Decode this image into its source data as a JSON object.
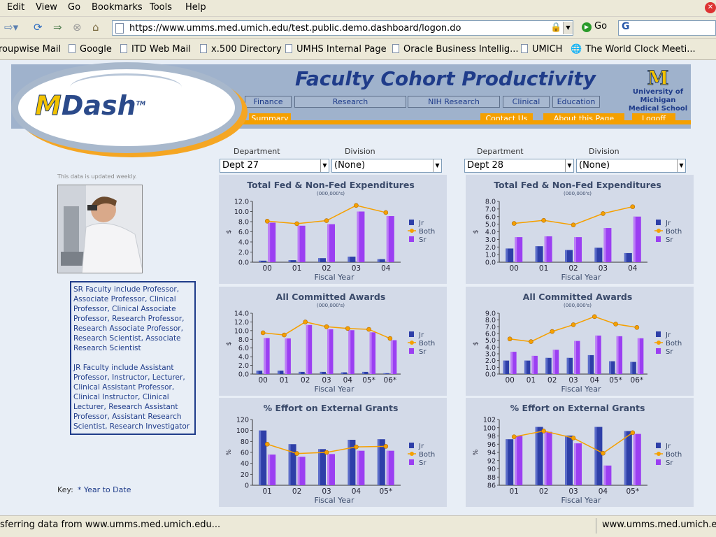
{
  "menu": [
    "Edit",
    "View",
    "Go",
    "Bookmarks",
    "Tools",
    "Help"
  ],
  "address": {
    "url": "https://www.umms.med.umich.edu/test.public.demo.dashboard/logon.do",
    "go_label": "Go",
    "search_glyph": "G"
  },
  "bookmarks": [
    "roupwise Mail",
    "Google",
    "ITD Web Mail",
    "x.500 Directory",
    "UMHS Internal Page",
    "Oracle Business Intellig...",
    "UMICH",
    "The World Clock Meeti..."
  ],
  "header": {
    "logo_m": "M",
    "logo_text": "Dash",
    "logo_tm": "TM",
    "title": "Faculty Cohort Productivity",
    "um_m": "M",
    "um_line1": "University of Michigan",
    "um_line2": "Medical School",
    "tabs": [
      "Finance",
      "Research",
      "NIH Research",
      "Clinical",
      "Education"
    ],
    "orange_tabs": [
      "Summary",
      "Contact Us",
      "About this Page",
      "Logoff"
    ]
  },
  "selectors": {
    "left": {
      "dept_label": "Department",
      "div_label": "Division",
      "dept_value": "Dept 27",
      "div_value": "(None)"
    },
    "right": {
      "dept_label": "Department",
      "div_label": "Division",
      "dept_value": "Dept 28",
      "div_value": "(None)"
    }
  },
  "sidebar": {
    "updated": "This data is updated weekly.",
    "sr_text": "SR Faculty include Professor, Associate Professor, Clinical Professor, Clinical Associate Professor, Research Professor, Research Associate Professor, Research Scientist, Associate Research Scientist",
    "jr_text": "JR Faculty include Assistant Professor, Instructor, Lecturer, Clinical Assistant Professor, Clinical Instructor, Clinical Lecturer, Research Assistant Professor, Assistant Research Scientist, Research Investigator",
    "key_label": "Key:",
    "key_text": "* Year to Date"
  },
  "colors": {
    "jr": "#2e3fa8",
    "both": "#f5a000",
    "sr": "#9b3ff2"
  },
  "chart_data": [
    {
      "id": "l1",
      "type": "bar",
      "title": "Total Fed & Non-Fed Expenditures",
      "subtitle": "(000,000's)",
      "xlabel": "Fiscal Year",
      "ylabel": "$",
      "categories": [
        "00",
        "01",
        "02",
        "03",
        "04"
      ],
      "ylim": [
        0,
        12
      ],
      "yticks": [
        "0.0",
        "2.0",
        "4.0",
        "6.0",
        "8.0",
        "10.0",
        "12.0"
      ],
      "series": [
        {
          "name": "Jr",
          "values": [
            0.3,
            0.4,
            0.8,
            1.1,
            0.6
          ]
        },
        {
          "name": "Both",
          "type": "line",
          "values": [
            8.1,
            7.6,
            8.2,
            11.2,
            9.8
          ]
        },
        {
          "name": "Sr",
          "values": [
            7.8,
            7.2,
            7.5,
            10.0,
            9.1
          ]
        }
      ]
    },
    {
      "id": "r1",
      "type": "bar",
      "title": "Total Fed & Non-Fed Expenditures",
      "subtitle": "(000,000's)",
      "xlabel": "Fiscal Year",
      "ylabel": "$",
      "categories": [
        "00",
        "01",
        "02",
        "03",
        "04"
      ],
      "ylim": [
        0,
        8
      ],
      "yticks": [
        "0.0",
        "1.0",
        "2.0",
        "3.0",
        "4.0",
        "5.0",
        "6.0",
        "7.0",
        "8.0"
      ],
      "series": [
        {
          "name": "Jr",
          "values": [
            1.8,
            2.1,
            1.6,
            1.9,
            1.2
          ]
        },
        {
          "name": "Both",
          "type": "line",
          "values": [
            5.1,
            5.5,
            4.9,
            6.4,
            7.3
          ]
        },
        {
          "name": "Sr",
          "values": [
            3.3,
            3.4,
            3.3,
            4.5,
            6.0
          ]
        }
      ]
    },
    {
      "id": "l2",
      "type": "bar",
      "title": "All Committed Awards",
      "subtitle": "(000,000's)",
      "xlabel": "Fiscal Year",
      "ylabel": "$",
      "categories": [
        "00",
        "01",
        "02",
        "03",
        "04",
        "05*",
        "06*"
      ],
      "ylim": [
        0,
        14
      ],
      "yticks": [
        "0.0",
        "2.0",
        "4.0",
        "6.0",
        "8.0",
        "10.0",
        "12.0",
        "14.0"
      ],
      "series": [
        {
          "name": "Jr",
          "values": [
            0.8,
            0.8,
            0.5,
            0.5,
            0.4,
            0.5,
            0.2
          ]
        },
        {
          "name": "Both",
          "type": "line",
          "values": [
            9.5,
            9.0,
            12.0,
            10.9,
            10.5,
            10.3,
            8.2
          ]
        },
        {
          "name": "Sr",
          "values": [
            8.3,
            8.2,
            11.3,
            10.3,
            10.1,
            9.6,
            7.8
          ]
        }
      ]
    },
    {
      "id": "r2",
      "type": "bar",
      "title": "All Committed Awards",
      "subtitle": "(000,000's)",
      "xlabel": "Fiscal Year",
      "ylabel": "$",
      "categories": [
        "00",
        "01",
        "02",
        "03",
        "04",
        "05*",
        "06*"
      ],
      "ylim": [
        0,
        9
      ],
      "yticks": [
        "0.0",
        "1.0",
        "2.0",
        "3.0",
        "4.0",
        "5.0",
        "6.0",
        "7.0",
        "8.0",
        "9.0"
      ],
      "series": [
        {
          "name": "Jr",
          "values": [
            2.0,
            2.0,
            2.4,
            2.4,
            2.8,
            1.9,
            1.8
          ]
        },
        {
          "name": "Both",
          "type": "line",
          "values": [
            5.2,
            4.8,
            6.3,
            7.3,
            8.5,
            7.4,
            6.9
          ]
        },
        {
          "name": "Sr",
          "values": [
            3.3,
            2.7,
            3.6,
            4.9,
            5.7,
            5.6,
            5.3
          ]
        }
      ]
    },
    {
      "id": "l3",
      "type": "bar",
      "title": "% Effort on External Grants",
      "subtitle": "",
      "xlabel": "Fiscal Year",
      "ylabel": "%",
      "categories": [
        "01",
        "02",
        "03",
        "04",
        "05*"
      ],
      "ylim": [
        0,
        120
      ],
      "yticks": [
        "0",
        "20",
        "40",
        "60",
        "80",
        "100",
        "120"
      ],
      "series": [
        {
          "name": "Jr",
          "values": [
            100,
            75,
            66,
            83,
            84
          ]
        },
        {
          "name": "Both",
          "type": "line",
          "values": [
            75,
            58,
            60,
            70,
            71
          ]
        },
        {
          "name": "Sr",
          "values": [
            56,
            52,
            57,
            63,
            63
          ]
        }
      ]
    },
    {
      "id": "r3",
      "type": "bar",
      "title": "% Effort on External Grants",
      "subtitle": "",
      "xlabel": "Fiscal Year",
      "ylabel": "%",
      "categories": [
        "01",
        "02",
        "03",
        "04",
        "05*"
      ],
      "ylim": [
        86,
        102
      ],
      "yticks": [
        "86",
        "88",
        "90",
        "92",
        "94",
        "96",
        "98",
        "100",
        "102"
      ],
      "series": [
        {
          "name": "Jr",
          "values": [
            97.2,
            100.2,
            98.1,
            100.2,
            99.2
          ]
        },
        {
          "name": "Both",
          "type": "line",
          "values": [
            97.8,
            99.2,
            97.5,
            93.8,
            98.8
          ]
        },
        {
          "name": "Sr",
          "values": [
            98.0,
            99.0,
            96.2,
            90.8,
            98.5
          ]
        }
      ]
    }
  ],
  "status": {
    "left": "sferring data from www.umms.med.umich.edu...",
    "right": "www.umms.med.umich.edu"
  }
}
